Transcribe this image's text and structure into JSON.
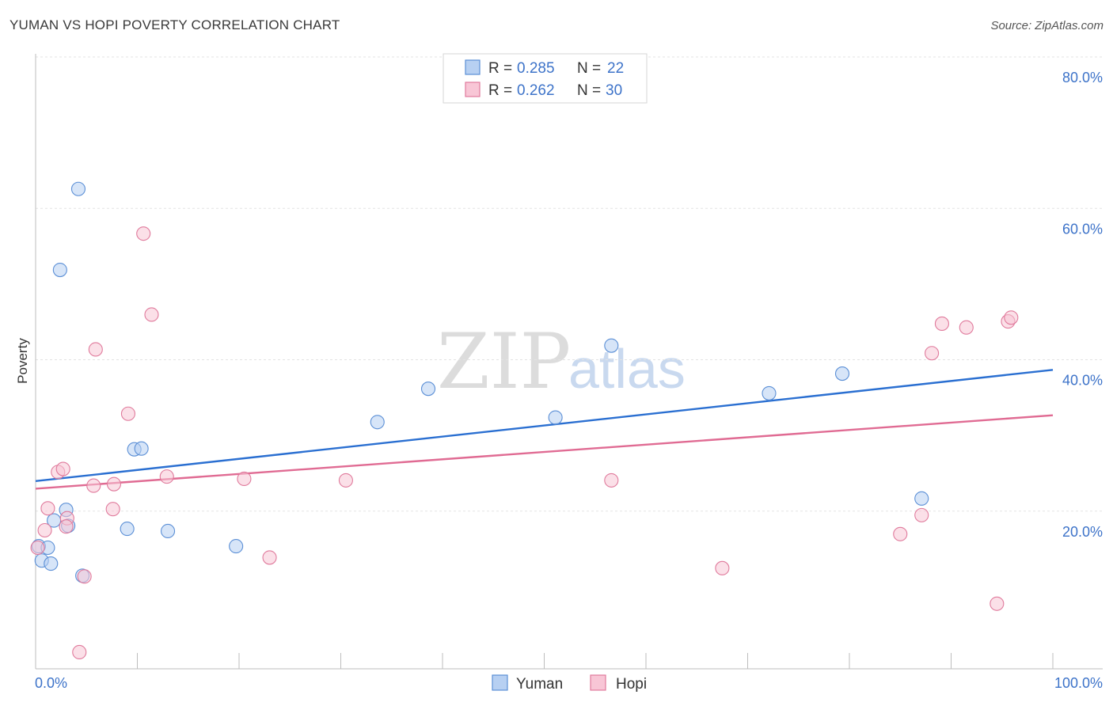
{
  "header": {
    "title": "YUMAN VS HOPI POVERTY CORRELATION CHART",
    "source": "Source: ZipAtlas.com"
  },
  "watermark": {
    "part1": "ZIP",
    "part2": "atlas"
  },
  "legend": {
    "rows": [
      {
        "r_label": "R =",
        "r_value": "0.285",
        "n_label": "N =",
        "n_value": "22"
      },
      {
        "r_label": "R =",
        "r_value": "0.262",
        "n_label": "N =",
        "n_value": "30"
      }
    ]
  },
  "chart_data": {
    "type": "scatter",
    "title": "YUMAN VS HOPI POVERTY CORRELATION CHART",
    "xlabel": "",
    "ylabel": "Poverty",
    "xlim": [
      0,
      100
    ],
    "ylim": [
      0,
      80
    ],
    "x_tick_labels": [
      "0.0%",
      "100.0%"
    ],
    "y_ticks": [
      20,
      40,
      60,
      80
    ],
    "y_tick_labels": [
      "20.0%",
      "40.0%",
      "60.0%",
      "80.0%"
    ],
    "grid": true,
    "series": [
      {
        "name": "Yuman",
        "color": "#5b8fd6",
        "fill": "#b7d0f2",
        "trend": {
          "start": [
            0,
            24.8
          ],
          "end": [
            100,
            39.5
          ]
        },
        "points": [
          [
            4.2,
            63.4
          ],
          [
            2.4,
            52.7
          ],
          [
            0.3,
            16.2
          ],
          [
            0.6,
            14.3
          ],
          [
            1.2,
            16.0
          ],
          [
            1.5,
            13.9
          ],
          [
            1.8,
            19.6
          ],
          [
            3.0,
            21.0
          ],
          [
            3.2,
            18.9
          ],
          [
            4.6,
            12.3
          ],
          [
            9.7,
            29.0
          ],
          [
            10.4,
            29.1
          ],
          [
            9.0,
            18.5
          ],
          [
            13.0,
            18.2
          ],
          [
            19.7,
            16.2
          ],
          [
            33.6,
            32.6
          ],
          [
            38.6,
            37.0
          ],
          [
            51.1,
            33.2
          ],
          [
            56.6,
            42.7
          ],
          [
            72.1,
            36.4
          ],
          [
            79.3,
            39.0
          ],
          [
            87.1,
            22.5
          ]
        ]
      },
      {
        "name": "Hopi",
        "color": "#e07a9c",
        "fill": "#f8c6d6",
        "trend": {
          "start": [
            0,
            23.8
          ],
          "end": [
            100,
            33.5
          ]
        },
        "points": [
          [
            10.6,
            57.5
          ],
          [
            11.4,
            46.8
          ],
          [
            5.9,
            42.2
          ],
          [
            9.1,
            33.7
          ],
          [
            2.2,
            26.0
          ],
          [
            2.7,
            26.4
          ],
          [
            0.9,
            18.3
          ],
          [
            1.2,
            21.2
          ],
          [
            3.1,
            19.9
          ],
          [
            3.0,
            18.8
          ],
          [
            5.7,
            24.2
          ],
          [
            7.7,
            24.4
          ],
          [
            7.6,
            21.1
          ],
          [
            12.9,
            25.4
          ],
          [
            20.5,
            25.1
          ],
          [
            23.0,
            14.7
          ],
          [
            30.5,
            24.9
          ],
          [
            56.6,
            24.9
          ],
          [
            67.5,
            13.3
          ],
          [
            4.3,
            2.2
          ],
          [
            4.8,
            12.2
          ],
          [
            0.2,
            16.0
          ],
          [
            85.0,
            17.8
          ],
          [
            87.1,
            20.3
          ],
          [
            88.1,
            41.7
          ],
          [
            89.1,
            45.6
          ],
          [
            91.5,
            45.1
          ],
          [
            94.5,
            8.6
          ],
          [
            95.6,
            45.9
          ],
          [
            95.9,
            46.4
          ]
        ]
      }
    ]
  }
}
